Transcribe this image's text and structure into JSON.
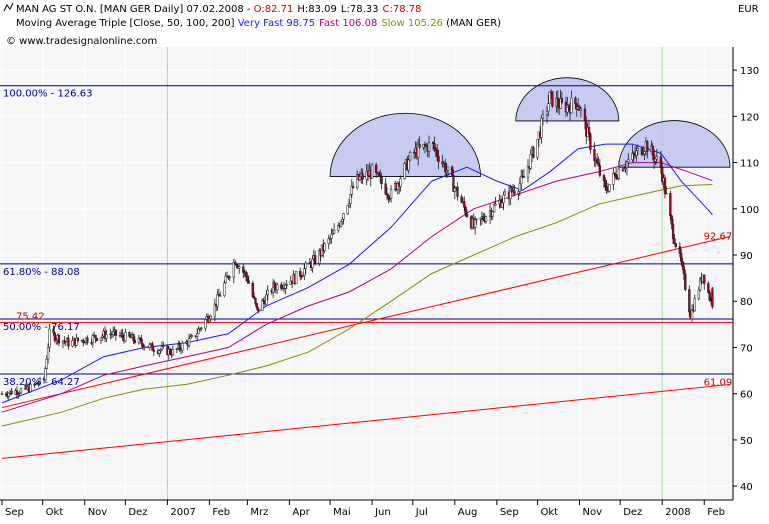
{
  "header": {
    "line1": {
      "instrument": "MAN AG ST O.N. [MAN GER  Daily] 07.02.2008 - ",
      "open": "O:82.71",
      "high": "H:83.09",
      "low": "L:78.33",
      "close": "C:78.78"
    },
    "line2": {
      "prefix": "Moving Average Triple [Close, 50, 100, 200] ",
      "very_fast": "Very Fast 98.75",
      "fast": "Fast 106.08",
      "slow": "Slow 105.26",
      "suffix": " (MAN GER)"
    },
    "line3": "© www.tradesignalonline.com",
    "currency": "EUR"
  },
  "colors": {
    "background": "#ffffff",
    "plot_background": "#f6f6f6",
    "grid": "#ffffff",
    "candle": "#1a1a1a",
    "candle_fill": "#b00020",
    "very_fast": "#1a1aff",
    "fast": "#b0008a",
    "slow": "#8b8b00",
    "fib": "#00008b",
    "trend": "#ff0000",
    "arc_fill": "#b8bcef",
    "annotation_red": "#cc0000",
    "annotation_blue": "#00008b"
  },
  "chart_data": {
    "type": "candlestick",
    "x_axis": {
      "labels": [
        "Sep",
        "Okt",
        "Nov",
        "Dez",
        "2007",
        "Feb",
        "Mrz",
        "Apr",
        "Mai",
        "Jun",
        "Jul",
        "Aug",
        "Sep",
        "Okt",
        "Nov",
        "Dez",
        "2008",
        "Feb"
      ],
      "months": [
        "2006-09",
        "2006-10",
        "2006-11",
        "2006-12",
        "2007-01",
        "2007-02",
        "2007-03",
        "2007-04",
        "2007-05",
        "2007-06",
        "2007-07",
        "2007-08",
        "2007-09",
        "2007-10",
        "2007-11",
        "2007-12",
        "2008-01",
        "2008-02"
      ]
    },
    "y_axis": {
      "ticks": [
        40,
        50,
        60,
        70,
        80,
        90,
        100,
        110,
        120,
        130
      ],
      "ylim": [
        37,
        135
      ],
      "position": "right",
      "unit": "EUR"
    },
    "price_path": [
      [
        "2006-09-01",
        60
      ],
      [
        "2006-09-20",
        61
      ],
      [
        "2006-10-02",
        63
      ],
      [
        "2006-10-06",
        73
      ],
      [
        "2006-10-20",
        71
      ],
      [
        "2006-11-05",
        72
      ],
      [
        "2006-11-20",
        73
      ],
      [
        "2006-12-05",
        72
      ],
      [
        "2006-12-20",
        70
      ],
      [
        "2007-01-05",
        69
      ],
      [
        "2007-01-20",
        72
      ],
      [
        "2007-02-05",
        79
      ],
      [
        "2007-02-20",
        89
      ],
      [
        "2007-03-01",
        85
      ],
      [
        "2007-03-08",
        78
      ],
      [
        "2007-03-20",
        83
      ],
      [
        "2007-04-05",
        85
      ],
      [
        "2007-04-20",
        89
      ],
      [
        "2007-05-05",
        95
      ],
      [
        "2007-05-20",
        106
      ],
      [
        "2007-06-01",
        108
      ],
      [
        "2007-06-15",
        103
      ],
      [
        "2007-07-01",
        112
      ],
      [
        "2007-07-15",
        114
      ],
      [
        "2007-07-25",
        109
      ],
      [
        "2007-08-05",
        102
      ],
      [
        "2007-08-15",
        96
      ],
      [
        "2007-08-25",
        99
      ],
      [
        "2007-09-05",
        102
      ],
      [
        "2007-09-20",
        106
      ],
      [
        "2007-10-01",
        115
      ],
      [
        "2007-10-10",
        124
      ],
      [
        "2007-10-20",
        122
      ],
      [
        "2007-10-31",
        123
      ],
      [
        "2007-11-10",
        113
      ],
      [
        "2007-11-20",
        104
      ],
      [
        "2007-12-01",
        109
      ],
      [
        "2007-12-10",
        111
      ],
      [
        "2007-12-20",
        114
      ],
      [
        "2007-12-31",
        109
      ],
      [
        "2008-01-08",
        96
      ],
      [
        "2008-01-15",
        88
      ],
      [
        "2008-01-22",
        77
      ],
      [
        "2008-01-31",
        86
      ],
      [
        "2008-02-07",
        78.78
      ]
    ],
    "last_candle": {
      "date": "2008-02-07",
      "open": 82.71,
      "high": 83.09,
      "low": 78.33,
      "close": 78.78
    },
    "moving_averages": [
      {
        "name": "Very Fast",
        "period": 50,
        "last": 98.75,
        "points": [
          [
            "2006-09-01",
            58
          ],
          [
            "2006-10-15",
            63
          ],
          [
            "2006-11-15",
            68
          ],
          [
            "2006-12-15",
            70
          ],
          [
            "2007-01-15",
            71
          ],
          [
            "2007-02-15",
            73
          ],
          [
            "2007-03-15",
            79
          ],
          [
            "2007-04-15",
            83
          ],
          [
            "2007-05-15",
            88
          ],
          [
            "2007-06-15",
            96
          ],
          [
            "2007-07-15",
            106
          ],
          [
            "2007-08-10",
            109
          ],
          [
            "2007-09-01",
            106
          ],
          [
            "2007-09-20",
            104
          ],
          [
            "2007-10-10",
            108
          ],
          [
            "2007-10-31",
            113
          ],
          [
            "2007-11-20",
            114
          ],
          [
            "2007-12-10",
            114
          ],
          [
            "2007-12-31",
            112
          ],
          [
            "2008-01-15",
            106
          ],
          [
            "2008-01-31",
            101
          ],
          [
            "2008-02-07",
            98.75
          ]
        ]
      },
      {
        "name": "Fast",
        "period": 100,
        "last": 106.08,
        "points": [
          [
            "2006-09-01",
            56
          ],
          [
            "2006-10-15",
            60
          ],
          [
            "2006-11-15",
            64
          ],
          [
            "2006-12-15",
            66
          ],
          [
            "2007-01-15",
            68
          ],
          [
            "2007-02-15",
            70
          ],
          [
            "2007-03-15",
            75
          ],
          [
            "2007-04-15",
            79
          ],
          [
            "2007-05-15",
            82
          ],
          [
            "2007-06-15",
            87
          ],
          [
            "2007-07-15",
            94
          ],
          [
            "2007-08-15",
            100
          ],
          [
            "2007-09-15",
            103
          ],
          [
            "2007-10-15",
            106
          ],
          [
            "2007-11-15",
            108
          ],
          [
            "2007-12-10",
            110
          ],
          [
            "2007-12-31",
            110
          ],
          [
            "2008-01-20",
            108
          ],
          [
            "2008-02-07",
            106.08
          ]
        ]
      },
      {
        "name": "Slow",
        "period": 200,
        "last": 105.26,
        "points": [
          [
            "2006-09-01",
            53
          ],
          [
            "2006-10-15",
            56
          ],
          [
            "2006-11-15",
            59
          ],
          [
            "2006-12-15",
            61
          ],
          [
            "2007-01-15",
            62
          ],
          [
            "2007-02-15",
            64
          ],
          [
            "2007-03-15",
            66
          ],
          [
            "2007-04-15",
            69
          ],
          [
            "2007-05-15",
            74
          ],
          [
            "2007-06-15",
            80
          ],
          [
            "2007-07-15",
            86
          ],
          [
            "2007-08-15",
            90
          ],
          [
            "2007-09-15",
            94
          ],
          [
            "2007-10-15",
            97
          ],
          [
            "2007-11-15",
            101
          ],
          [
            "2007-12-15",
            103
          ],
          [
            "2008-01-15",
            105
          ],
          [
            "2008-02-07",
            105.26
          ]
        ]
      }
    ],
    "fibonacci_levels": [
      {
        "label": "100.00% - 126.63",
        "value": 126.63
      },
      {
        "label": "61.80% - 88.08",
        "value": 88.08
      },
      {
        "label": "50.00% - 76.17",
        "value": 76.17
      },
      {
        "label": "38.20% - 64.27",
        "value": 64.27
      }
    ],
    "horizontal_lines": [
      {
        "label": "75.42",
        "value": 75.42
      }
    ],
    "trend_lines": [
      {
        "from": [
          "2006-09-01",
          57
        ],
        "to": [
          "2008-02-20",
          94
        ]
      },
      {
        "from": [
          "2006-09-01",
          46
        ],
        "to": [
          "2008-02-20",
          62
        ]
      }
    ],
    "price_labels": [
      {
        "label": "92.67",
        "date": "2008-02-02",
        "value": 92.67
      },
      {
        "label": "61.09",
        "date": "2008-02-02",
        "value": 61.09
      }
    ],
    "arcs": [
      {
        "from": "2007-05-01",
        "to": "2007-08-20",
        "base": 107
      },
      {
        "from": "2007-09-15",
        "to": "2007-11-30",
        "base": 119
      },
      {
        "from": "2007-11-30",
        "to": "2008-02-20",
        "base": 109
      }
    ],
    "vertical_markers": [
      "2007-01-01",
      "2008-01-01"
    ]
  }
}
